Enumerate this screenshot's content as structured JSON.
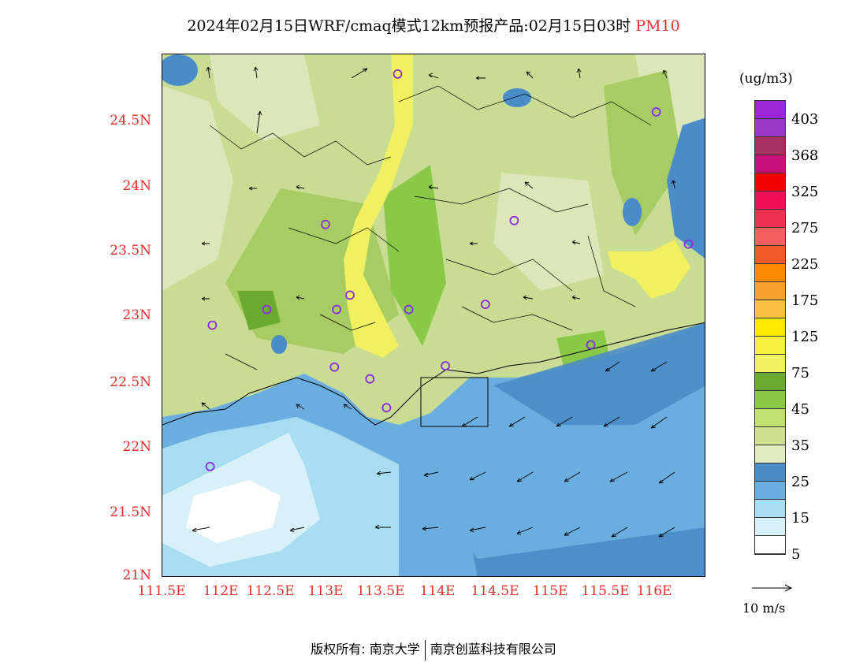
{
  "title": {
    "main": "2024年02月15日WRF/cmaq模式12km预报产品:02月15日03时",
    "pollutant": "PM10"
  },
  "axes": {
    "y_ticks": [
      "24.5N",
      "24N",
      "23.5N",
      "23N",
      "22.5N",
      "22N",
      "21.5N",
      "21N"
    ],
    "x_ticks": [
      "111.5E",
      "112E",
      "112.5E",
      "113E",
      "113.5E",
      "114E",
      "114.5E",
      "115E",
      "115.5E",
      "116E"
    ]
  },
  "legend": {
    "unit": "(ug/m3)",
    "colors": [
      "#9a28d8",
      "#9a38c8",
      "#a83060",
      "#c8107a",
      "#f00000",
      "#f0105a",
      "#f03050",
      "#f86060",
      "#f05a28",
      "#f88a00",
      "#f8a030",
      "#f8c040",
      "#fce800",
      "#f8f040",
      "#f0f060",
      "#6aaa30",
      "#8ac848",
      "#c0e070",
      "#d0e090",
      "#e0ecc0",
      "#4a8cc8",
      "#6aaee0",
      "#a8dcf0",
      "#d8f0f8",
      "#ffffff"
    ],
    "labels": [
      "403",
      "368",
      "325",
      "275",
      "225",
      "175",
      "125",
      "75",
      "45",
      "35",
      "25",
      "15",
      "5"
    ]
  },
  "wind_key": {
    "label": "10 m/s"
  },
  "stations": [
    {
      "lon": 113.62,
      "lat": 24.85
    },
    {
      "lon": 115.95,
      "lat": 24.56
    },
    {
      "lon": 112.97,
      "lat": 23.7
    },
    {
      "lon": 114.67,
      "lat": 23.73
    },
    {
      "lon": 116.24,
      "lat": 23.55
    },
    {
      "lon": 113.19,
      "lat": 23.16
    },
    {
      "lon": 112.44,
      "lat": 23.05
    },
    {
      "lon": 113.07,
      "lat": 23.05
    },
    {
      "lon": 113.72,
      "lat": 23.05
    },
    {
      "lon": 114.41,
      "lat": 23.09
    },
    {
      "lon": 111.95,
      "lat": 22.93
    },
    {
      "lon": 115.36,
      "lat": 22.78
    },
    {
      "lon": 113.05,
      "lat": 22.61
    },
    {
      "lon": 114.05,
      "lat": 22.62
    },
    {
      "lon": 113.37,
      "lat": 22.52
    },
    {
      "lon": 113.52,
      "lat": 22.3
    },
    {
      "lon": 111.93,
      "lat": 21.85
    }
  ],
  "copyright": {
    "left": "版权所有: 南京大学",
    "right": "南京创蓝科技有限公司"
  }
}
